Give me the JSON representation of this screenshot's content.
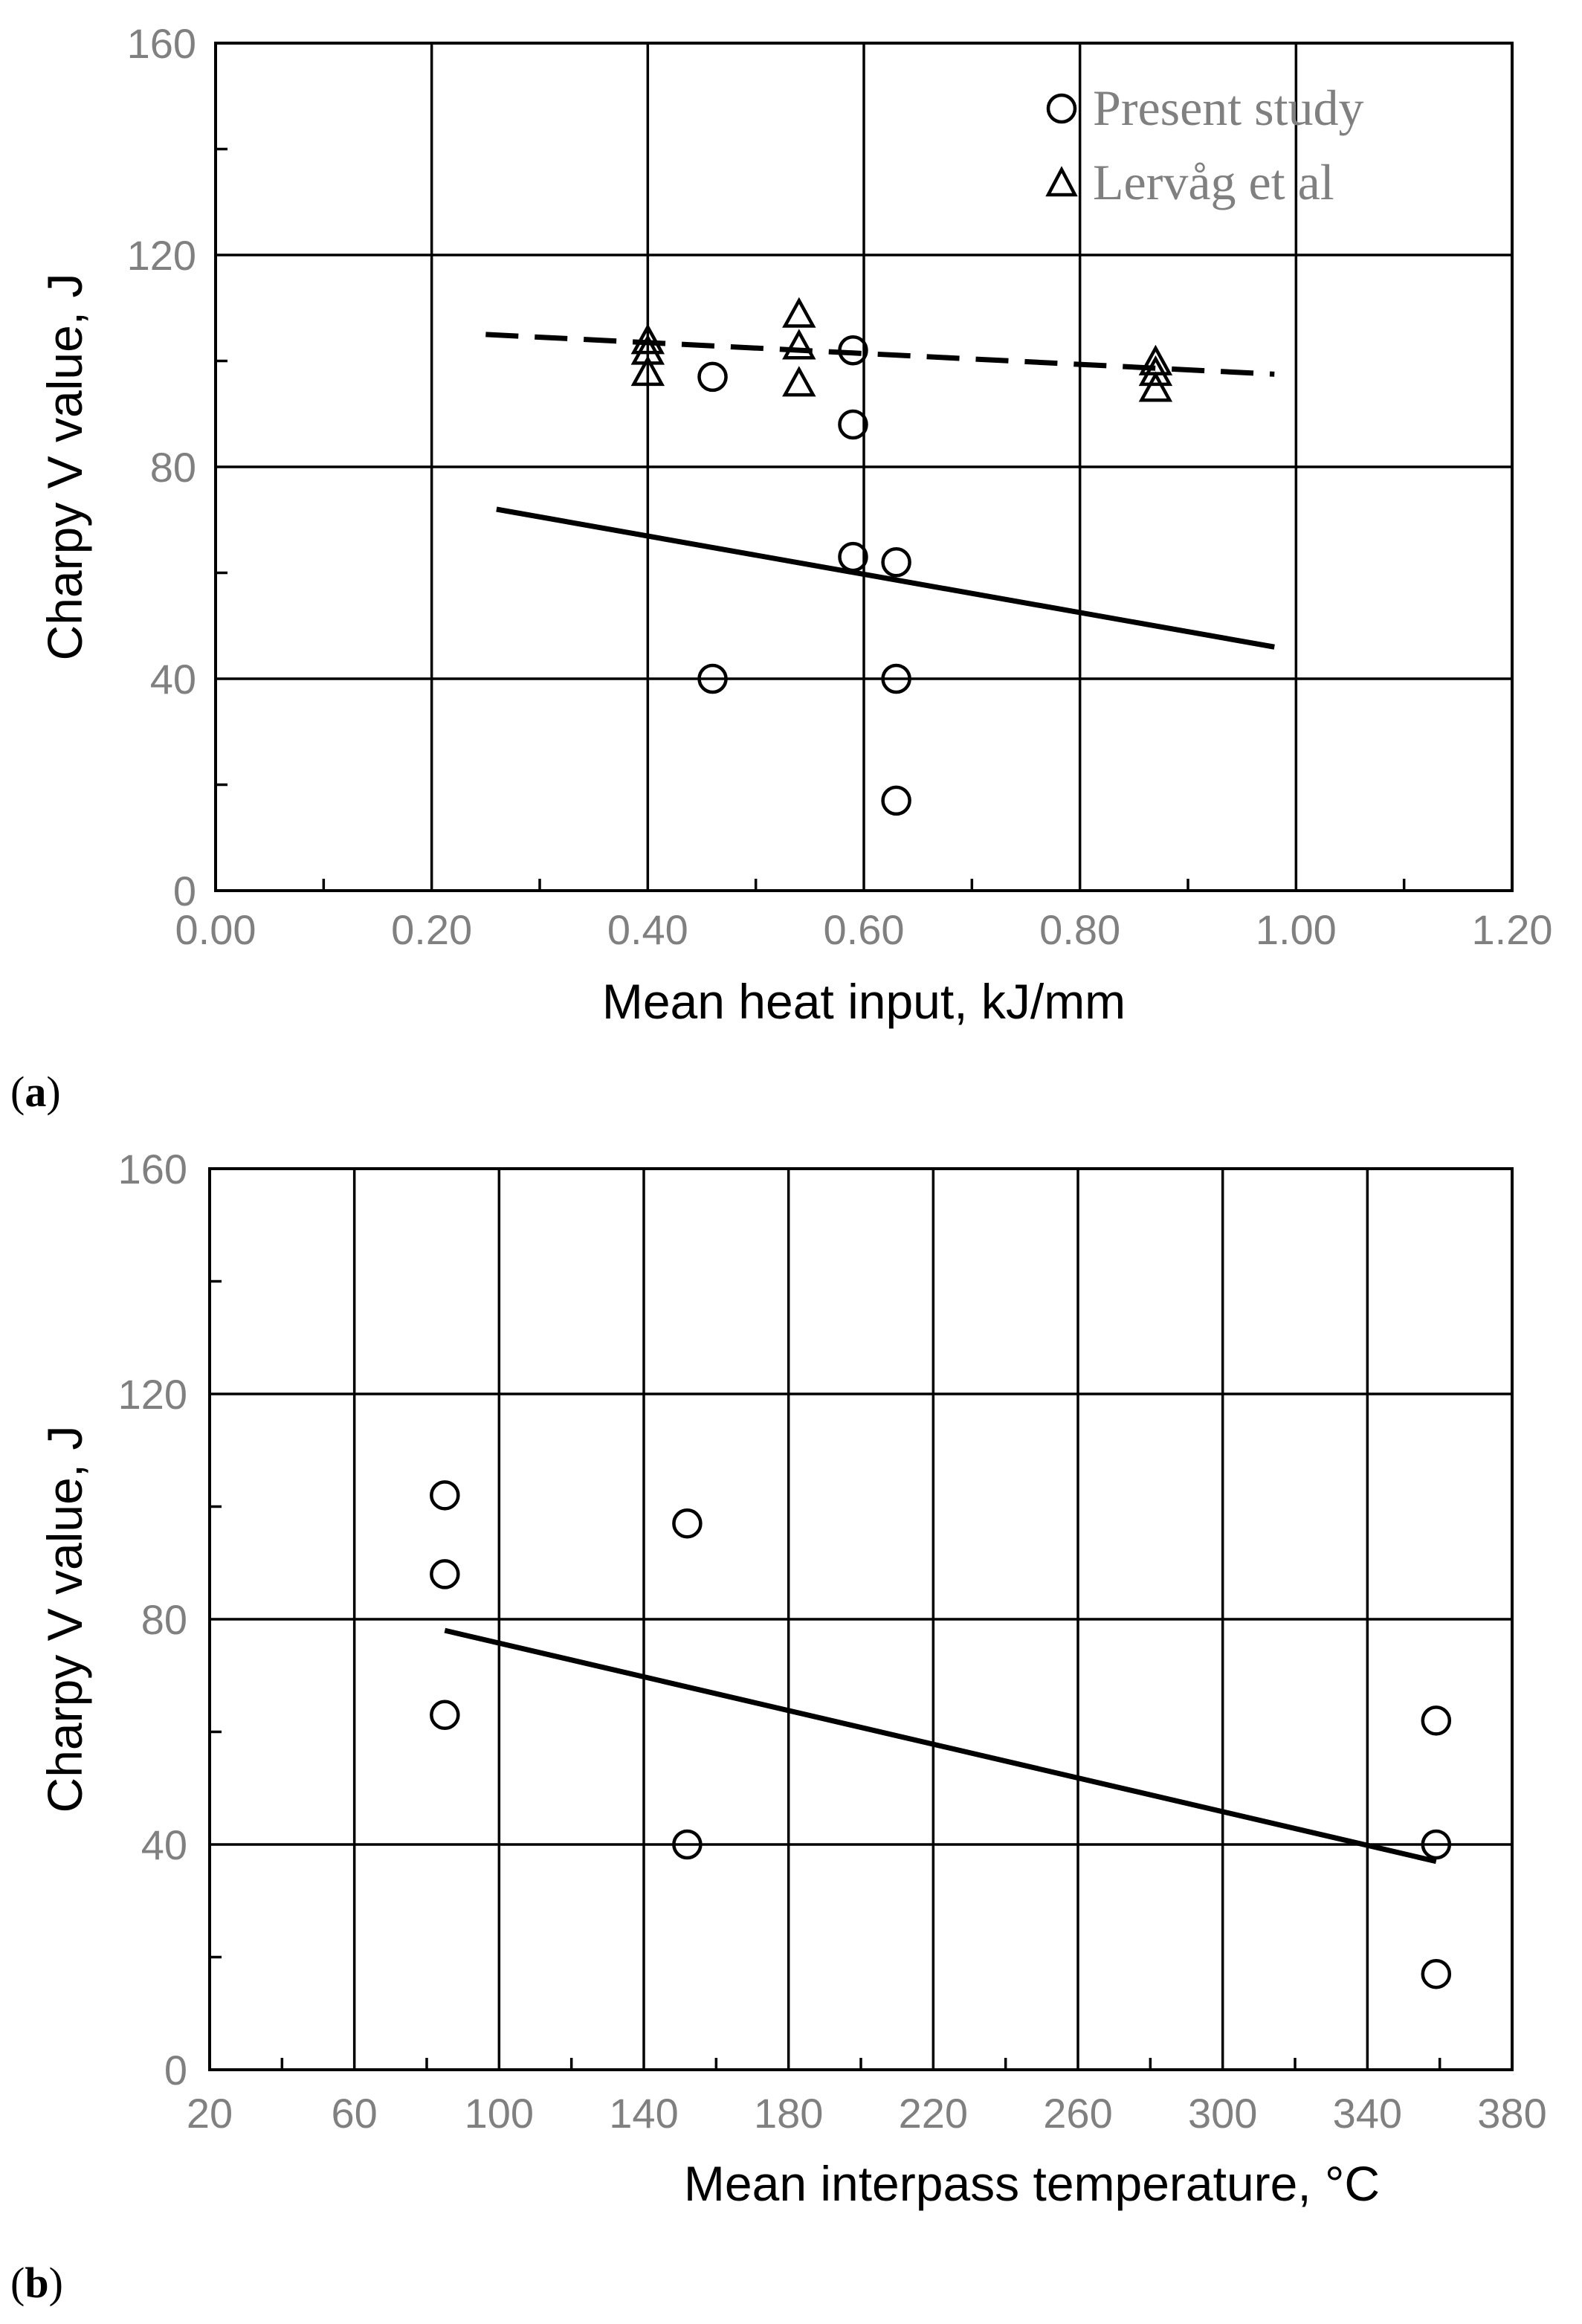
{
  "colors": {
    "line": "#000000",
    "tick_label": "#808080",
    "background": "#ffffff"
  },
  "chart_data": [
    {
      "type": "scatter",
      "panel_label": "(a)",
      "panel_letter": "a",
      "xlabel": "Mean heat input, kJ/mm",
      "ylabel": "Charpy V value, J",
      "xlim": [
        0,
        1.2
      ],
      "ylim": [
        0,
        160
      ],
      "x_ticks": [
        "0.00",
        "0.20",
        "0.40",
        "0.60",
        "0.80",
        "1.00",
        "1.20"
      ],
      "y_ticks": [
        "0",
        "40",
        "80",
        "120",
        "160"
      ],
      "grid": true,
      "legend_position": "top-right",
      "series": [
        {
          "name": "Present study",
          "marker": "circle",
          "points": [
            [
              0.46,
              97
            ],
            [
              0.46,
              40
            ],
            [
              0.59,
              102
            ],
            [
              0.59,
              88
            ],
            [
              0.59,
              63
            ],
            [
              0.63,
              62
            ],
            [
              0.63,
              40
            ],
            [
              0.63,
              17
            ]
          ]
        },
        {
          "name": "Lervåg et al",
          "marker": "triangle",
          "points": [
            [
              0.4,
              104
            ],
            [
              0.4,
              102
            ],
            [
              0.4,
              98
            ],
            [
              0.54,
              109
            ],
            [
              0.54,
              103
            ],
            [
              0.54,
              96
            ],
            [
              0.87,
              100
            ],
            [
              0.87,
              98
            ],
            [
              0.87,
              95
            ]
          ]
        }
      ],
      "trendlines": [
        {
          "name": "Present study trend",
          "style": "solid",
          "from": [
            0.26,
            72
          ],
          "to": [
            0.98,
            46
          ]
        },
        {
          "name": "Lervåg et al trend",
          "style": "dashed",
          "from": [
            0.25,
            105
          ],
          "to": [
            0.98,
            97.5
          ]
        }
      ]
    },
    {
      "type": "scatter",
      "panel_label": "(b)",
      "panel_letter": "b",
      "xlabel": "Mean interpass temperature, °C",
      "ylabel": "Charpy V value, J",
      "xlim": [
        20,
        380
      ],
      "ylim": [
        0,
        160
      ],
      "x_ticks": [
        "20",
        "60",
        "100",
        "140",
        "180",
        "220",
        "260",
        "300",
        "340",
        "380"
      ],
      "y_ticks": [
        "0",
        "40",
        "80",
        "120",
        "160"
      ],
      "grid": true,
      "series": [
        {
          "name": "Present study",
          "marker": "circle",
          "points": [
            [
              85,
              102
            ],
            [
              85,
              88
            ],
            [
              85,
              63
            ],
            [
              152,
              97
            ],
            [
              152,
              40
            ],
            [
              359,
              62
            ],
            [
              359,
              40
            ],
            [
              359,
              17
            ]
          ]
        }
      ],
      "trendlines": [
        {
          "name": "Present study trend",
          "style": "solid",
          "from": [
            85,
            78
          ],
          "to": [
            359,
            37
          ]
        }
      ]
    }
  ]
}
